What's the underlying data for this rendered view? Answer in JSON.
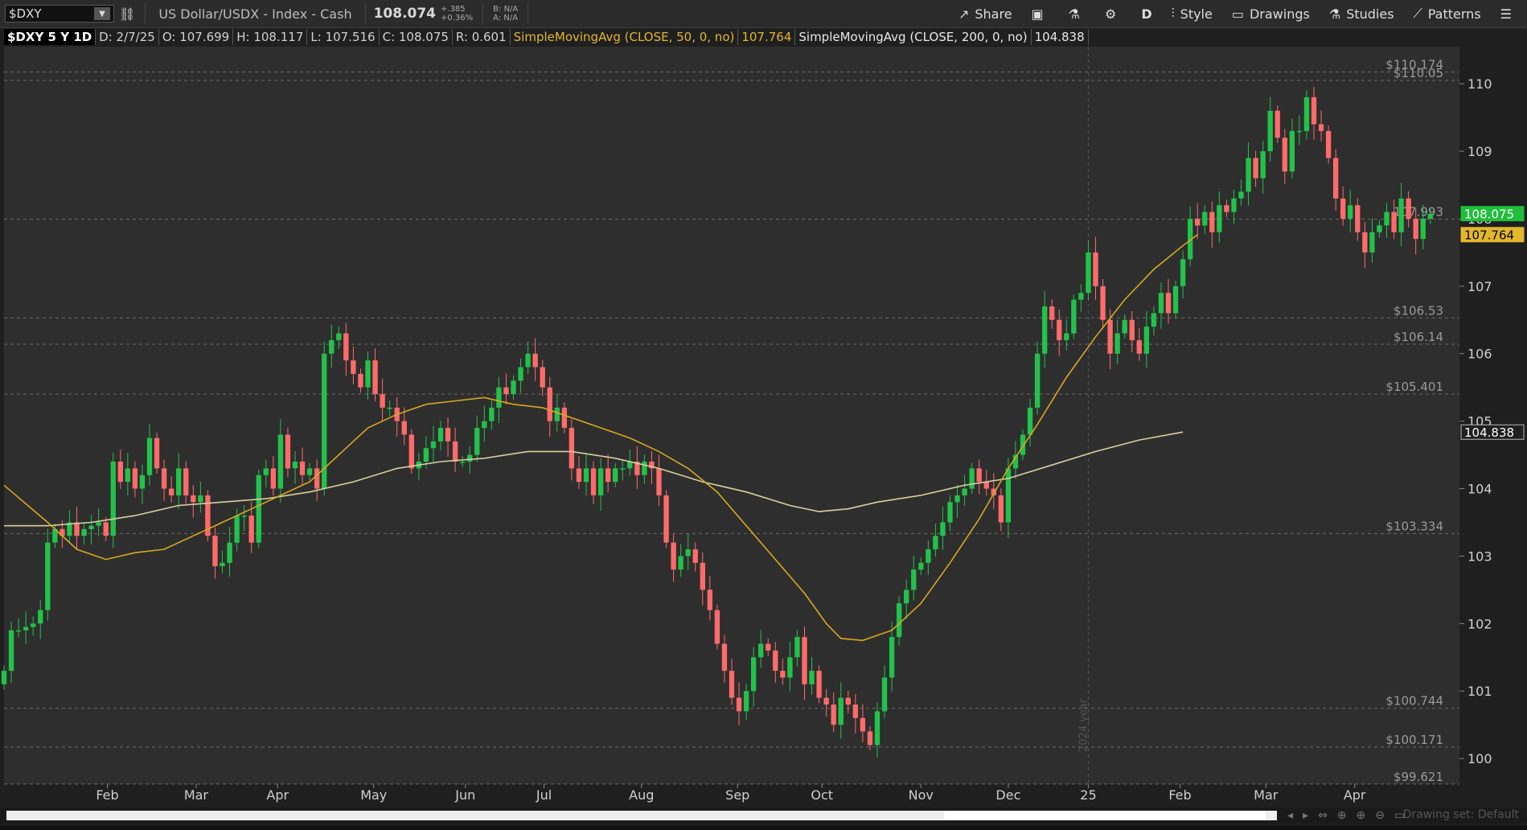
{
  "toolbar": {
    "symbol": "$DXY",
    "description": "US Dollar/USDX - Index - Cash",
    "last": "108.074",
    "change": "+.385",
    "change_pct": "+0.36%",
    "bid": "B: N/A",
    "ask": "A: N/A",
    "share": "Share",
    "period": "D",
    "style": "Style",
    "drawings": "Drawings",
    "studies": "Studies",
    "patterns": "Patterns"
  },
  "infobar": {
    "symbol_period": "$DXY 5 Y 1D",
    "date": "D: 2/7/25",
    "open": "O: 107.699",
    "high": "H: 108.117",
    "low": "L: 107.516",
    "close": "C: 108.075",
    "range": "R: 0.601",
    "sma50_label": "SimpleMovingAvg (CLOSE, 50, 0, no)",
    "sma50_value": "107.764",
    "sma200_label": "SimpleMovingAvg (CLOSE, 200, 0, no)",
    "sma200_value": "104.838"
  },
  "status": {
    "drawing_set": "Drawing set: Default"
  },
  "colors": {
    "up": "#22c24a",
    "down": "#ff6b6b",
    "sma": "#d6a81e",
    "sma200": "#d8cfa0",
    "grid": "#3a3a3a",
    "background": "#2e2e2e"
  },
  "chart_data": {
    "type": "candlestick",
    "price_ticks": [
      "100",
      "101",
      "102",
      "103",
      "104",
      "105",
      "106",
      "107",
      "108",
      "109",
      "110"
    ],
    "ylim": [
      99.62,
      110.55
    ],
    "x_ticks": [
      {
        "label": "Feb",
        "pos": 0.071
      },
      {
        "label": "Mar",
        "pos": 0.132
      },
      {
        "label": "Apr",
        "pos": 0.188
      },
      {
        "label": "May",
        "pos": 0.254
      },
      {
        "label": "Jun",
        "pos": 0.317
      },
      {
        "label": "Jul",
        "pos": 0.371
      },
      {
        "label": "Aug",
        "pos": 0.438
      },
      {
        "label": "Sep",
        "pos": 0.504
      },
      {
        "label": "Oct",
        "pos": 0.562
      },
      {
        "label": "Nov",
        "pos": 0.63
      },
      {
        "label": "Dec",
        "pos": 0.69
      },
      {
        "label": "25",
        "pos": 0.745
      },
      {
        "label": "Feb",
        "pos": 0.808
      },
      {
        "label": "Mar",
        "pos": 0.867
      },
      {
        "label": "Apr",
        "pos": 0.928
      }
    ],
    "year_marker": {
      "label": "2024 year",
      "pos": 0.745
    },
    "level_lines": [
      {
        "label": "$110.174",
        "value": 110.174
      },
      {
        "label": "$110.05",
        "value": 110.05
      },
      {
        "label": "107.993",
        "value": 107.993
      },
      {
        "label": "$106.53",
        "value": 106.53
      },
      {
        "label": "$106.14",
        "value": 106.14
      },
      {
        "label": "$105.401",
        "value": 105.401
      },
      {
        "label": "$103.334",
        "value": 103.334
      },
      {
        "label": "$100.744",
        "value": 100.744
      },
      {
        "label": "$100.171",
        "value": 100.171
      },
      {
        "label": "$99.621",
        "value": 99.621
      }
    ],
    "price_badges": [
      {
        "label": "108.075",
        "value": 108.075,
        "color": "#1fbf3c"
      },
      {
        "label": "107.764",
        "value": 107.764,
        "color": "#e3b72c"
      },
      {
        "label": "104.838",
        "value": 104.838,
        "color": "#1f1f1f"
      }
    ],
    "sma50": [
      [
        0.0,
        104.05
      ],
      [
        0.03,
        103.5
      ],
      [
        0.05,
        103.1
      ],
      [
        0.07,
        102.95
      ],
      [
        0.09,
        103.05
      ],
      [
        0.11,
        103.1
      ],
      [
        0.13,
        103.3
      ],
      [
        0.15,
        103.5
      ],
      [
        0.17,
        103.7
      ],
      [
        0.19,
        103.9
      ],
      [
        0.21,
        104.1
      ],
      [
        0.23,
        104.5
      ],
      [
        0.25,
        104.9
      ],
      [
        0.27,
        105.1
      ],
      [
        0.29,
        105.25
      ],
      [
        0.31,
        105.3
      ],
      [
        0.33,
        105.35
      ],
      [
        0.35,
        105.25
      ],
      [
        0.37,
        105.2
      ],
      [
        0.39,
        105.05
      ],
      [
        0.41,
        104.9
      ],
      [
        0.43,
        104.75
      ],
      [
        0.45,
        104.55
      ],
      [
        0.47,
        104.3
      ],
      [
        0.49,
        103.95
      ],
      [
        0.51,
        103.45
      ],
      [
        0.53,
        102.95
      ],
      [
        0.55,
        102.45
      ],
      [
        0.565,
        102.0
      ],
      [
        0.575,
        101.78
      ],
      [
        0.59,
        101.75
      ],
      [
        0.61,
        101.9
      ],
      [
        0.63,
        102.3
      ],
      [
        0.65,
        102.9
      ],
      [
        0.67,
        103.55
      ],
      [
        0.69,
        104.3
      ],
      [
        0.71,
        104.95
      ],
      [
        0.73,
        105.65
      ],
      [
        0.75,
        106.25
      ],
      [
        0.77,
        106.8
      ],
      [
        0.79,
        107.25
      ],
      [
        0.81,
        107.6
      ],
      [
        0.82,
        107.764
      ]
    ],
    "sma200": [
      [
        0.0,
        103.45
      ],
      [
        0.03,
        103.45
      ],
      [
        0.06,
        103.5
      ],
      [
        0.09,
        103.6
      ],
      [
        0.12,
        103.75
      ],
      [
        0.15,
        103.8
      ],
      [
        0.18,
        103.85
      ],
      [
        0.21,
        103.95
      ],
      [
        0.24,
        104.1
      ],
      [
        0.27,
        104.3
      ],
      [
        0.3,
        104.4
      ],
      [
        0.33,
        104.45
      ],
      [
        0.36,
        104.55
      ],
      [
        0.39,
        104.55
      ],
      [
        0.42,
        104.45
      ],
      [
        0.45,
        104.3
      ],
      [
        0.48,
        104.1
      ],
      [
        0.51,
        103.95
      ],
      [
        0.54,
        103.75
      ],
      [
        0.56,
        103.66
      ],
      [
        0.58,
        103.7
      ],
      [
        0.6,
        103.8
      ],
      [
        0.63,
        103.9
      ],
      [
        0.66,
        104.05
      ],
      [
        0.69,
        104.15
      ],
      [
        0.72,
        104.35
      ],
      [
        0.75,
        104.55
      ],
      [
        0.78,
        104.72
      ],
      [
        0.81,
        104.838
      ]
    ],
    "closes": [
      [
        0.0,
        101.3
      ],
      [
        0.005,
        101.9
      ],
      [
        0.01,
        101.9
      ],
      [
        0.015,
        101.95
      ],
      [
        0.02,
        102.0
      ],
      [
        0.025,
        102.2
      ],
      [
        0.03,
        103.2
      ],
      [
        0.035,
        103.4
      ],
      [
        0.04,
        103.3
      ],
      [
        0.045,
        103.5
      ],
      [
        0.05,
        103.3
      ],
      [
        0.055,
        103.4
      ],
      [
        0.06,
        103.45
      ],
      [
        0.065,
        103.5
      ],
      [
        0.07,
        103.3
      ],
      [
        0.075,
        104.4
      ],
      [
        0.08,
        104.1
      ],
      [
        0.085,
        104.3
      ],
      [
        0.09,
        104.0
      ],
      [
        0.095,
        104.2
      ],
      [
        0.1,
        104.75
      ],
      [
        0.105,
        104.3
      ],
      [
        0.11,
        104.0
      ],
      [
        0.115,
        103.9
      ],
      [
        0.12,
        104.3
      ],
      [
        0.125,
        103.9
      ],
      [
        0.13,
        103.8
      ],
      [
        0.135,
        103.9
      ],
      [
        0.14,
        103.3
      ],
      [
        0.145,
        102.85
      ],
      [
        0.15,
        102.9
      ],
      [
        0.155,
        103.2
      ],
      [
        0.16,
        103.6
      ],
      [
        0.165,
        103.6
      ],
      [
        0.17,
        103.2
      ],
      [
        0.175,
        104.2
      ],
      [
        0.18,
        104.3
      ],
      [
        0.185,
        104.0
      ],
      [
        0.19,
        104.8
      ],
      [
        0.195,
        104.3
      ],
      [
        0.2,
        104.4
      ],
      [
        0.205,
        104.2
      ],
      [
        0.21,
        104.3
      ],
      [
        0.215,
        104.0
      ],
      [
        0.22,
        106.0
      ],
      [
        0.225,
        106.2
      ],
      [
        0.23,
        106.3
      ],
      [
        0.235,
        105.9
      ],
      [
        0.24,
        105.7
      ],
      [
        0.245,
        105.5
      ],
      [
        0.25,
        105.9
      ],
      [
        0.255,
        105.4
      ],
      [
        0.26,
        105.2
      ],
      [
        0.265,
        105.2
      ],
      [
        0.27,
        105.0
      ],
      [
        0.275,
        104.8
      ],
      [
        0.28,
        104.3
      ],
      [
        0.285,
        104.4
      ],
      [
        0.29,
        104.6
      ],
      [
        0.295,
        104.7
      ],
      [
        0.3,
        104.9
      ],
      [
        0.305,
        104.7
      ],
      [
        0.31,
        104.4
      ],
      [
        0.315,
        104.4
      ],
      [
        0.32,
        104.5
      ],
      [
        0.325,
        104.9
      ],
      [
        0.33,
        105.0
      ],
      [
        0.335,
        105.2
      ],
      [
        0.34,
        105.5
      ],
      [
        0.345,
        105.4
      ],
      [
        0.35,
        105.6
      ],
      [
        0.355,
        105.8
      ],
      [
        0.36,
        106.0
      ],
      [
        0.365,
        105.8
      ],
      [
        0.37,
        105.5
      ],
      [
        0.375,
        105.0
      ],
      [
        0.38,
        105.2
      ],
      [
        0.385,
        104.9
      ],
      [
        0.39,
        104.3
      ],
      [
        0.395,
        104.1
      ],
      [
        0.4,
        104.3
      ],
      [
        0.405,
        103.9
      ],
      [
        0.41,
        104.3
      ],
      [
        0.415,
        104.1
      ],
      [
        0.42,
        104.3
      ],
      [
        0.425,
        104.3
      ],
      [
        0.43,
        104.4
      ],
      [
        0.435,
        104.2
      ],
      [
        0.44,
        104.4
      ],
      [
        0.445,
        104.3
      ],
      [
        0.45,
        103.9
      ],
      [
        0.455,
        103.2
      ],
      [
        0.46,
        102.8
      ],
      [
        0.465,
        103.0
      ],
      [
        0.47,
        103.1
      ],
      [
        0.475,
        102.9
      ],
      [
        0.48,
        102.5
      ],
      [
        0.485,
        102.2
      ],
      [
        0.49,
        101.7
      ],
      [
        0.495,
        101.3
      ],
      [
        0.5,
        100.9
      ],
      [
        0.505,
        100.7
      ],
      [
        0.51,
        101.0
      ],
      [
        0.515,
        101.5
      ],
      [
        0.52,
        101.7
      ],
      [
        0.525,
        101.6
      ],
      [
        0.53,
        101.3
      ],
      [
        0.535,
        101.2
      ],
      [
        0.54,
        101.5
      ],
      [
        0.545,
        101.8
      ],
      [
        0.55,
        101.1
      ],
      [
        0.555,
        101.3
      ],
      [
        0.56,
        100.9
      ],
      [
        0.565,
        100.8
      ],
      [
        0.57,
        100.5
      ],
      [
        0.575,
        100.9
      ],
      [
        0.58,
        100.8
      ],
      [
        0.585,
        100.6
      ],
      [
        0.59,
        100.4
      ],
      [
        0.595,
        100.2
      ],
      [
        0.6,
        100.7
      ],
      [
        0.605,
        101.2
      ],
      [
        0.61,
        101.8
      ],
      [
        0.615,
        102.3
      ],
      [
        0.62,
        102.5
      ],
      [
        0.625,
        102.8
      ],
      [
        0.63,
        102.9
      ],
      [
        0.635,
        103.1
      ],
      [
        0.64,
        103.3
      ],
      [
        0.645,
        103.5
      ],
      [
        0.65,
        103.8
      ],
      [
        0.655,
        103.9
      ],
      [
        0.66,
        104.0
      ],
      [
        0.665,
        104.3
      ],
      [
        0.67,
        104.1
      ],
      [
        0.675,
        104.0
      ],
      [
        0.68,
        103.9
      ],
      [
        0.685,
        103.5
      ],
      [
        0.69,
        104.3
      ],
      [
        0.695,
        104.5
      ],
      [
        0.7,
        104.8
      ],
      [
        0.705,
        105.2
      ],
      [
        0.71,
        106.0
      ],
      [
        0.715,
        106.7
      ],
      [
        0.72,
        106.5
      ],
      [
        0.725,
        106.2
      ],
      [
        0.73,
        106.3
      ],
      [
        0.735,
        106.8
      ],
      [
        0.74,
        106.9
      ],
      [
        0.745,
        107.5
      ],
      [
        0.75,
        107.0
      ],
      [
        0.755,
        106.5
      ],
      [
        0.76,
        106.0
      ],
      [
        0.765,
        106.3
      ],
      [
        0.77,
        106.5
      ],
      [
        0.775,
        106.2
      ],
      [
        0.78,
        106.0
      ],
      [
        0.785,
        106.4
      ],
      [
        0.79,
        106.6
      ],
      [
        0.795,
        106.9
      ],
      [
        0.8,
        106.6
      ],
      [
        0.805,
        107.0
      ],
      [
        0.81,
        107.4
      ],
      [
        0.815,
        108.0
      ],
      [
        0.82,
        107.9
      ],
      [
        0.825,
        108.1
      ],
      [
        0.83,
        107.8
      ],
      [
        0.835,
        108.2
      ],
      [
        0.84,
        108.1
      ],
      [
        0.845,
        108.3
      ],
      [
        0.85,
        108.4
      ],
      [
        0.855,
        108.9
      ],
      [
        0.86,
        108.6
      ],
      [
        0.865,
        109.0
      ],
      [
        0.87,
        109.6
      ],
      [
        0.875,
        109.2
      ],
      [
        0.88,
        108.7
      ],
      [
        0.885,
        109.3
      ],
      [
        0.89,
        109.3
      ],
      [
        0.895,
        109.8
      ],
      [
        0.9,
        109.4
      ],
      [
        0.905,
        109.3
      ],
      [
        0.91,
        108.9
      ],
      [
        0.915,
        108.3
      ],
      [
        0.92,
        108.0
      ],
      [
        0.925,
        108.2
      ],
      [
        0.93,
        107.8
      ],
      [
        0.935,
        107.5
      ],
      [
        0.94,
        107.8
      ],
      [
        0.945,
        107.9
      ],
      [
        0.95,
        108.1
      ],
      [
        0.955,
        107.8
      ],
      [
        0.96,
        108.3
      ],
      [
        0.965,
        108.0
      ],
      [
        0.97,
        107.7
      ],
      [
        0.975,
        108.0
      ],
      [
        0.98,
        108.075
      ]
    ]
  }
}
